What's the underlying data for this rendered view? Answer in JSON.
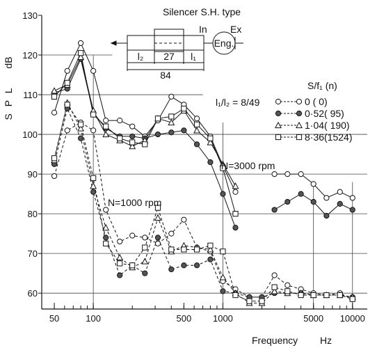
{
  "chart_data": {
    "type": "line",
    "title": "Silencer S.H. type",
    "xlabel": "Frequency",
    "xunit": "Hz",
    "ylabel": "S P L",
    "yunit": "dB",
    "xscale": "log",
    "xlim": [
      40,
      13000
    ],
    "ylim": [
      56,
      130
    ],
    "xticks": [
      {
        "value": 50,
        "label": "50"
      },
      {
        "value": 100,
        "label": "100"
      },
      {
        "value": 500,
        "label": "500"
      },
      {
        "value": 1000,
        "label": "1000"
      },
      {
        "value": 5000,
        "label": "5000"
      },
      {
        "value": 10000,
        "label": "10000"
      }
    ],
    "yticks": [
      {
        "value": 60,
        "label": "60"
      },
      {
        "value": 70,
        "label": "70"
      },
      {
        "value": 80,
        "label": "80"
      },
      {
        "value": 90,
        "label": "90"
      },
      {
        "value": 100,
        "label": "100"
      },
      {
        "value": 110,
        "label": "110"
      },
      {
        "value": 120,
        "label": "120"
      },
      {
        "value": 130,
        "label": "130"
      }
    ],
    "grid": "partial",
    "legend": {
      "position": "right",
      "header": "S/f₁  (n)",
      "entries": [
        "0    (   0)",
        "0·52(  95)",
        "1·04( 190)",
        "8·36(1524)"
      ]
    },
    "annotations": {
      "ratio": "l₁/l₂ = 8/49",
      "high_speed": "N=3000 rpm",
      "low_speed": "N=1000 rpm"
    },
    "schematic": {
      "inlet": "In",
      "exhaust": "Ex",
      "engine": "Eng.",
      "dim_l2": "l₂",
      "dim_27": "27",
      "dim_l1": "l₁",
      "dim_84": "84"
    },
    "series": [
      {
        "name": "0 (0)",
        "group": "N=3000 rpm",
        "marker": "open-circle",
        "line": "solid",
        "points": [
          [
            50,
            105.5
          ],
          [
            63,
            116
          ],
          [
            80,
            123
          ],
          [
            100,
            116
          ],
          [
            125,
            103.5
          ],
          [
            160,
            103.5
          ],
          [
            200,
            102
          ],
          [
            250,
            99.5
          ],
          [
            315,
            103.5
          ],
          [
            400,
            109.5
          ],
          [
            500,
            107.5
          ],
          [
            630,
            104
          ],
          [
            800,
            99.5
          ],
          [
            1000,
            92
          ],
          [
            1250,
            85.5
          ]
        ]
      },
      {
        "name": "0.52 (95)",
        "group": "N=3000 rpm",
        "marker": "filled-circle",
        "line": "solid",
        "points": [
          [
            50,
            110.5
          ],
          [
            63,
            111.5
          ],
          [
            80,
            119
          ],
          [
            100,
            105.5
          ],
          [
            125,
            101.5
          ],
          [
            160,
            99.5
          ],
          [
            200,
            99.5
          ],
          [
            250,
            99
          ],
          [
            315,
            100
          ],
          [
            400,
            100.5
          ],
          [
            500,
            101
          ],
          [
            630,
            97.5
          ],
          [
            800,
            93
          ],
          [
            1000,
            85
          ],
          [
            1250,
            76.5
          ]
        ]
      },
      {
        "name": "1.04 (190)",
        "group": "N=3000 rpm",
        "marker": "open-triangle",
        "line": "solid",
        "points": [
          [
            50,
            111
          ],
          [
            63,
            112.5
          ],
          [
            80,
            119.5
          ],
          [
            100,
            106
          ],
          [
            125,
            100
          ],
          [
            160,
            98.5
          ],
          [
            200,
            97
          ],
          [
            250,
            98.5
          ],
          [
            315,
            104
          ],
          [
            400,
            103
          ],
          [
            500,
            106
          ],
          [
            630,
            101
          ],
          [
            800,
            98
          ],
          [
            1000,
            92.5
          ],
          [
            1250,
            87
          ]
        ]
      },
      {
        "name": "8.36 (1524)",
        "group": "N=3000 rpm",
        "marker": "open-square",
        "line": "solid",
        "points": [
          [
            50,
            109.5
          ],
          [
            63,
            113
          ],
          [
            80,
            120.5
          ],
          [
            100,
            105
          ],
          [
            125,
            102
          ],
          [
            160,
            99
          ],
          [
            200,
            98
          ],
          [
            250,
            97.5
          ],
          [
            315,
            104
          ],
          [
            400,
            104.5
          ],
          [
            500,
            106.5
          ],
          [
            630,
            102.5
          ],
          [
            800,
            99
          ],
          [
            1000,
            91.5
          ],
          [
            1250,
            80
          ]
        ]
      },
      {
        "name": "0 (0)",
        "group": "N=3000 rpm",
        "marker": "open-circle",
        "line": "solid",
        "points": [
          [
            2500,
            90
          ],
          [
            3150,
            90
          ],
          [
            4000,
            90
          ],
          [
            5000,
            87.5
          ],
          [
            6300,
            84
          ],
          [
            8000,
            85.5
          ],
          [
            10000,
            84
          ]
        ]
      },
      {
        "name": "0.52 (95)",
        "group": "N=3000 rpm",
        "marker": "filled-circle",
        "line": "solid",
        "points": [
          [
            2500,
            81
          ],
          [
            3150,
            83
          ],
          [
            4000,
            85
          ],
          [
            5000,
            83
          ],
          [
            6300,
            79.5
          ],
          [
            8000,
            82.5
          ],
          [
            10000,
            81
          ]
        ]
      },
      {
        "name": "0 (0)",
        "group": "N=1000 rpm",
        "marker": "open-circle",
        "line": "dashed",
        "points": [
          [
            50,
            89.5
          ],
          [
            63,
            101
          ],
          [
            80,
            103
          ],
          [
            100,
            101
          ],
          [
            125,
            81
          ],
          [
            160,
            73
          ],
          [
            200,
            74.5
          ],
          [
            250,
            74
          ],
          [
            315,
            72.5
          ],
          [
            400,
            75
          ],
          [
            500,
            78.5
          ],
          [
            630,
            71.5
          ],
          [
            800,
            70.5
          ],
          [
            1000,
            63
          ],
          [
            1250,
            61
          ],
          [
            1600,
            59
          ],
          [
            2000,
            59
          ],
          [
            2500,
            64.5
          ],
          [
            3150,
            62
          ],
          [
            4000,
            61
          ],
          [
            5000,
            60
          ],
          [
            6300,
            59.5
          ],
          [
            8000,
            60
          ],
          [
            10000,
            58.5
          ]
        ]
      },
      {
        "name": "0.52 (95)",
        "group": "N=1000 rpm",
        "marker": "filled-circle",
        "line": "dashed",
        "points": [
          [
            50,
            92.5
          ],
          [
            63,
            106.5
          ],
          [
            80,
            99
          ],
          [
            100,
            85.5
          ],
          [
            125,
            74
          ],
          [
            160,
            64.5
          ],
          [
            200,
            67
          ],
          [
            250,
            65
          ],
          [
            315,
            74
          ],
          [
            400,
            66
          ],
          [
            500,
            67
          ],
          [
            630,
            67
          ],
          [
            800,
            68.5
          ],
          [
            1000,
            60.5
          ],
          [
            1250,
            60
          ],
          [
            1600,
            59
          ],
          [
            2000,
            59
          ],
          [
            2500,
            60
          ],
          [
            3150,
            60
          ],
          [
            4000,
            60
          ],
          [
            5000,
            59.5
          ],
          [
            6300,
            59.5
          ],
          [
            8000,
            59.5
          ],
          [
            10000,
            59
          ]
        ]
      },
      {
        "name": "1.04 (190)",
        "group": "N=1000 rpm",
        "marker": "open-triangle",
        "line": "dashed",
        "points": [
          [
            50,
            93.5
          ],
          [
            63,
            108
          ],
          [
            80,
            101.5
          ],
          [
            100,
            87
          ],
          [
            125,
            76.5
          ],
          [
            160,
            69
          ],
          [
            200,
            66.5
          ],
          [
            250,
            68
          ],
          [
            315,
            79
          ],
          [
            400,
            70.5
          ],
          [
            500,
            72
          ],
          [
            630,
            71.5
          ],
          [
            800,
            71
          ],
          [
            1000,
            64
          ],
          [
            1250,
            60
          ],
          [
            1600,
            57.5
          ],
          [
            2000,
            57.5
          ],
          [
            2500,
            60.5
          ],
          [
            3150,
            60
          ],
          [
            4000,
            60
          ],
          [
            5000,
            59.5
          ],
          [
            6300,
            59.5
          ],
          [
            8000,
            59.5
          ],
          [
            10000,
            59
          ]
        ]
      },
      {
        "name": "8.36 (1524)",
        "group": "N=1000 rpm",
        "marker": "open-square",
        "line": "dashed",
        "points": [
          [
            50,
            94
          ],
          [
            63,
            107.5
          ],
          [
            80,
            102.5
          ],
          [
            100,
            89
          ],
          [
            125,
            72.5
          ],
          [
            160,
            67.5
          ],
          [
            200,
            67
          ],
          [
            250,
            71.5
          ],
          [
            315,
            81.5
          ],
          [
            400,
            71
          ],
          [
            500,
            71
          ],
          [
            630,
            71
          ],
          [
            800,
            72
          ],
          [
            1000,
            70.5
          ],
          [
            1250,
            59.5
          ],
          [
            1600,
            58
          ],
          [
            2000,
            58
          ],
          [
            2500,
            61.5
          ],
          [
            3150,
            60.5
          ],
          [
            4000,
            59.5
          ],
          [
            5000,
            59.5
          ],
          [
            6300,
            59.5
          ],
          [
            8000,
            59.5
          ],
          [
            10000,
            58.5
          ]
        ]
      }
    ]
  }
}
